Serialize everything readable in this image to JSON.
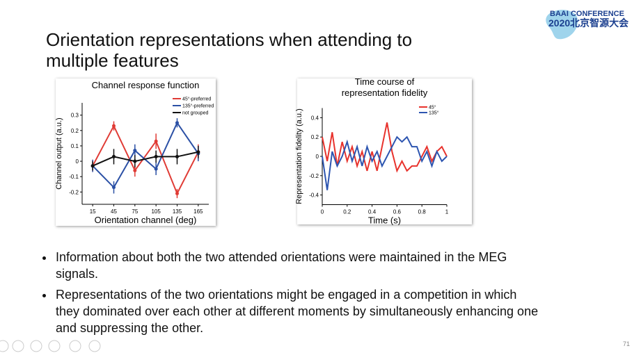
{
  "slide": {
    "title": "Orientation representations when attending to multiple features",
    "bullets": [
      "Information about both the two attended orientations were maintained in the MEG signals.",
      "Representations of the two orientations might be engaged in a competition in which they dominated over each other at different moments by simultaneously enhancing one and suppressing the other."
    ],
    "page_number": "71",
    "logo_top": "BAAI CONFERENCE",
    "logo_bottom": "2020北京智源大会"
  },
  "chart_data": [
    {
      "type": "line",
      "title": "Channel response function",
      "x_label": "Orientation channel (deg)",
      "y_label": "Channel output (a.u.)",
      "x": [
        15,
        45,
        75,
        105,
        135,
        165
      ],
      "xlim": [
        0,
        180
      ],
      "xticks": [
        15,
        45,
        75,
        105,
        135,
        165
      ],
      "ylim": [
        -0.28,
        0.38
      ],
      "yticks": [
        -0.2,
        -0.1,
        0,
        0.1,
        0.2,
        0.3
      ],
      "series": [
        {
          "name": "45°-preferred",
          "color": "#e03b35",
          "values": [
            -0.03,
            0.23,
            -0.06,
            0.13,
            -0.21,
            0.06
          ],
          "errors": [
            0.04,
            0.03,
            0.04,
            0.05,
            0.03,
            0.05
          ]
        },
        {
          "name": "135°-preferred",
          "color": "#2b50a5",
          "values": [
            -0.03,
            -0.17,
            0.07,
            -0.05,
            0.25,
            0.05
          ],
          "errors": [
            0.04,
            0.04,
            0.04,
            0.04,
            0.03,
            0.05
          ]
        },
        {
          "name": "not grouped",
          "color": "#111111",
          "values": [
            -0.03,
            0.03,
            0.0,
            0.03,
            0.03,
            0.06
          ],
          "errors": [
            0.03,
            0.05,
            0.04,
            0.04,
            0.05,
            0.04
          ]
        }
      ]
    },
    {
      "type": "line",
      "title": [
        "Time course of",
        "representation fidelity"
      ],
      "x_label": "Time (s)",
      "y_label": "Representation fidelity (a.u.)",
      "x": [
        0,
        0.04,
        0.08,
        0.12,
        0.16,
        0.2,
        0.24,
        0.28,
        0.32,
        0.36,
        0.4,
        0.44,
        0.48,
        0.52,
        0.56,
        0.6,
        0.64,
        0.68,
        0.72,
        0.76,
        0.8,
        0.84,
        0.88,
        0.92,
        0.96,
        1.0
      ],
      "xlim": [
        0,
        1
      ],
      "xticks": [
        0,
        0.2,
        0.4,
        0.6,
        0.8,
        1
      ],
      "ylim": [
        -0.5,
        0.5
      ],
      "yticks": [
        -0.4,
        -0.2,
        0,
        0.2,
        0.4
      ],
      "series": [
        {
          "name": "45°",
          "color": "#e8322c",
          "values": [
            0.2,
            -0.05,
            0.25,
            -0.1,
            0.15,
            -0.05,
            0.1,
            -0.1,
            0.05,
            -0.15,
            0.05,
            -0.15,
            0.1,
            0.35,
            0.05,
            -0.15,
            -0.05,
            -0.15,
            -0.1,
            -0.1,
            0.0,
            0.1,
            -0.05,
            0.05,
            0.1,
            0.0
          ]
        },
        {
          "name": "135°",
          "color": "#2d55b0",
          "values": [
            0.0,
            -0.35,
            0.05,
            -0.1,
            0.0,
            0.15,
            -0.05,
            0.1,
            -0.1,
            0.1,
            -0.05,
            0.05,
            -0.1,
            0.0,
            0.1,
            0.2,
            0.15,
            0.2,
            0.1,
            0.1,
            -0.05,
            0.05,
            -0.1,
            0.05,
            -0.05,
            0.0
          ]
        }
      ]
    }
  ]
}
